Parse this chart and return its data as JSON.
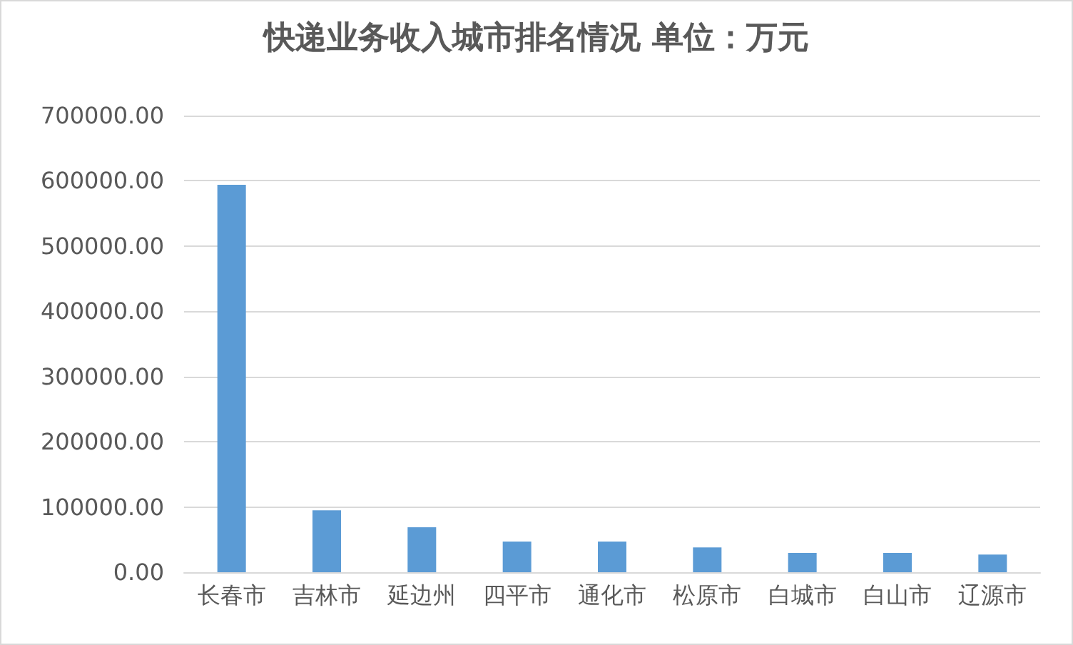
{
  "chart_data": {
    "type": "bar",
    "title": "快递业务收入城市排名情况 单位：万元",
    "categories": [
      "长春市",
      "吉林市",
      "延边州",
      "四平市",
      "通化市",
      "松原市",
      "白城市",
      "白山市",
      "辽源市"
    ],
    "values": [
      594000,
      95000,
      69000,
      47000,
      47000,
      38000,
      29500,
      29500,
      27000
    ],
    "color": "#5b9bd5",
    "ylim": [
      0,
      700000
    ],
    "yticks": [
      {
        "value": 0,
        "label": "0.00"
      },
      {
        "value": 100000,
        "label": "100000.00"
      },
      {
        "value": 200000,
        "label": "200000.00"
      },
      {
        "value": 300000,
        "label": "300000.00"
      },
      {
        "value": 400000,
        "label": "400000.00"
      },
      {
        "value": 500000,
        "label": "500000.00"
      },
      {
        "value": 600000,
        "label": "600000.00"
      },
      {
        "value": 700000,
        "label": "700000.00"
      }
    ],
    "grid": "y"
  }
}
